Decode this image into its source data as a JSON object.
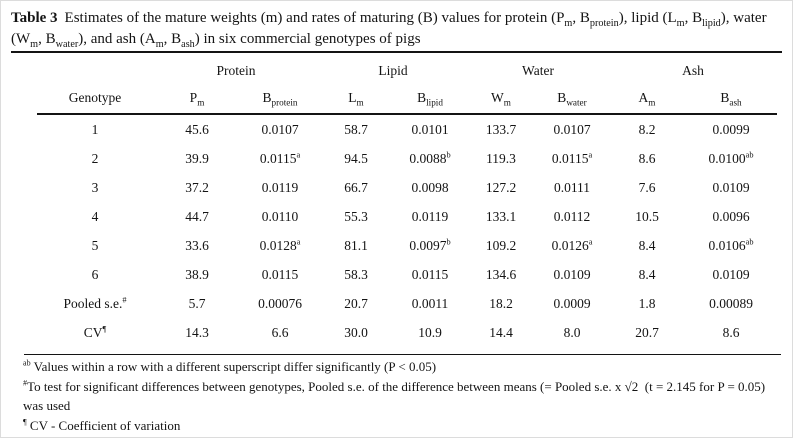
{
  "page": {
    "background": "#ffffff",
    "text_color": "#141414",
    "rule_color": "#141414"
  },
  "title": {
    "label": "Table 3",
    "segments": [
      {
        "t": "Estimates of the mature weights (m) and rates of maturing (B) values for protein (P"
      },
      {
        "t": "m",
        "sub": true
      },
      {
        "t": ", B"
      },
      {
        "t": "protein",
        "sub": true
      },
      {
        "t": "), lipid (L"
      },
      {
        "t": "m",
        "sub": true
      },
      {
        "t": ", B"
      },
      {
        "t": "lipid",
        "sub": true
      },
      {
        "t": "), water (W"
      },
      {
        "t": "m",
        "sub": true
      },
      {
        "t": ", B"
      },
      {
        "t": "water",
        "sub": true
      },
      {
        "t": "), and ash (A"
      },
      {
        "t": "m",
        "sub": true
      },
      {
        "t": ", B"
      },
      {
        "t": "ash",
        "sub": true
      },
      {
        "t": ") in six commercial genotypes of pigs"
      }
    ]
  },
  "table": {
    "group_headers": [
      {
        "label": "",
        "span": 1
      },
      {
        "label": "Protein",
        "span": 2
      },
      {
        "label": "Lipid",
        "span": 2
      },
      {
        "label": "Water",
        "span": 2
      },
      {
        "label": "Ash",
        "span": 2
      }
    ],
    "column_headers": [
      {
        "main": "Genotype",
        "sub": ""
      },
      {
        "main": "P",
        "sub": "m"
      },
      {
        "main": "B",
        "sub": "protein"
      },
      {
        "main": "L",
        "sub": "m"
      },
      {
        "main": "B",
        "sub": "lipid"
      },
      {
        "main": "W",
        "sub": "m"
      },
      {
        "main": "B",
        "sub": "water"
      },
      {
        "main": "A",
        "sub": "m"
      },
      {
        "main": "B",
        "sub": "ash"
      }
    ],
    "rows": [
      {
        "label": "1",
        "label_sup": "",
        "values": [
          {
            "v": "45.6"
          },
          {
            "v": "0.0107"
          },
          {
            "v": "58.7"
          },
          {
            "v": "0.0101"
          },
          {
            "v": "133.7"
          },
          {
            "v": "0.0107"
          },
          {
            "v": "8.2"
          },
          {
            "v": "0.0099"
          }
        ]
      },
      {
        "label": "2",
        "label_sup": "",
        "values": [
          {
            "v": "39.9"
          },
          {
            "v": "0.0115",
            "sup": "a"
          },
          {
            "v": "94.5"
          },
          {
            "v": "0.0088",
            "sup": "b"
          },
          {
            "v": "119.3"
          },
          {
            "v": "0.0115",
            "sup": "a"
          },
          {
            "v": "8.6"
          },
          {
            "v": "0.0100",
            "sup": "ab"
          }
        ]
      },
      {
        "label": "3",
        "label_sup": "",
        "values": [
          {
            "v": "37.2"
          },
          {
            "v": "0.0119"
          },
          {
            "v": "66.7"
          },
          {
            "v": "0.0098"
          },
          {
            "v": "127.2"
          },
          {
            "v": "0.0111"
          },
          {
            "v": "7.6"
          },
          {
            "v": "0.0109"
          }
        ]
      },
      {
        "label": "4",
        "label_sup": "",
        "values": [
          {
            "v": "44.7"
          },
          {
            "v": "0.0110"
          },
          {
            "v": "55.3"
          },
          {
            "v": "0.0119"
          },
          {
            "v": "133.1"
          },
          {
            "v": "0.0112"
          },
          {
            "v": "10.5"
          },
          {
            "v": "0.0096"
          }
        ]
      },
      {
        "label": "5",
        "label_sup": "",
        "values": [
          {
            "v": "33.6"
          },
          {
            "v": "0.0128",
            "sup": "a"
          },
          {
            "v": "81.1"
          },
          {
            "v": "0.0097",
            "sup": "b"
          },
          {
            "v": "109.2"
          },
          {
            "v": "0.0126",
            "sup": "a"
          },
          {
            "v": "8.4"
          },
          {
            "v": "0.0106",
            "sup": "ab"
          }
        ]
      },
      {
        "label": "6",
        "label_sup": "",
        "values": [
          {
            "v": "38.9"
          },
          {
            "v": "0.0115"
          },
          {
            "v": "58.3"
          },
          {
            "v": "0.0115"
          },
          {
            "v": "134.6"
          },
          {
            "v": "0.0109"
          },
          {
            "v": "8.4"
          },
          {
            "v": "0.0109"
          }
        ]
      },
      {
        "label": "Pooled s.e.",
        "label_sup": "#",
        "values": [
          {
            "v": "5.7"
          },
          {
            "v": "0.00076"
          },
          {
            "v": "20.7"
          },
          {
            "v": "0.0011"
          },
          {
            "v": "18.2"
          },
          {
            "v": "0.0009"
          },
          {
            "v": "1.8"
          },
          {
            "v": "0.00089"
          }
        ]
      },
      {
        "label": "CV",
        "label_sup": "¶",
        "values": [
          {
            "v": "14.3"
          },
          {
            "v": "6.6"
          },
          {
            "v": "30.0"
          },
          {
            "v": "10.9"
          },
          {
            "v": "14.4"
          },
          {
            "v": "8.0"
          },
          {
            "v": "20.7"
          },
          {
            "v": "8.6"
          }
        ]
      }
    ]
  },
  "footnotes": [
    {
      "sup": "ab",
      "text": " Values within a row with a different superscript differ significantly (P < 0.05)"
    },
    {
      "sup": "#",
      "text": "To test for significant differences between genotypes, Pooled s.e. of the difference between means (= Pooled s.e. x √2  (t = 2.145 for P = 0.05) was used"
    },
    {
      "sup": "¶",
      "text": " CV - Coefficient of variation"
    }
  ]
}
